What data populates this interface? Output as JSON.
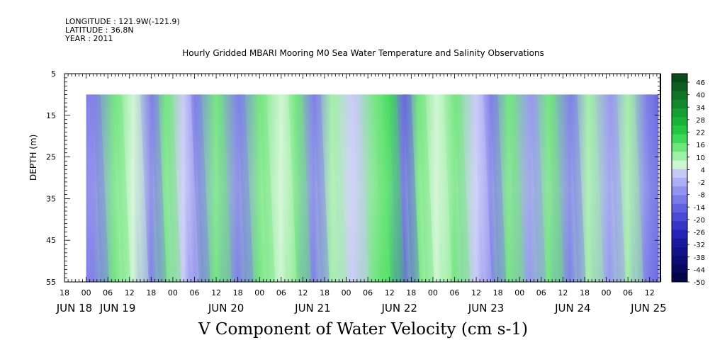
{
  "meta": {
    "longitude": "LONGITUDE : 121.9W(-121.9)",
    "latitude": "LATITUDE : 36.8N",
    "year": "YEAR : 2011"
  },
  "chart_data": {
    "type": "heatmap",
    "title": "Hourly Gridded MBARI Mooring M0 Sea Water Temperature and Salinity Observations",
    "xlabel": "V Component of Water Velocity (cm s-1)",
    "ylabel": "DEPTH (m)",
    "ylim": [
      5,
      55
    ],
    "y_inverted": true,
    "y_ticks": [
      5,
      15,
      25,
      35,
      45,
      55
    ],
    "data_depth_range": [
      10,
      55
    ],
    "x_hours_range": [
      -6,
      159
    ],
    "data_hour_start": 0,
    "x_hour_ticks": [
      {
        "h": -6,
        "label": "18"
      },
      {
        "h": 0,
        "label": "00"
      },
      {
        "h": 6,
        "label": "06"
      },
      {
        "h": 12,
        "label": "12"
      },
      {
        "h": 18,
        "label": "18"
      },
      {
        "h": 24,
        "label": "00"
      },
      {
        "h": 30,
        "label": "06"
      },
      {
        "h": 36,
        "label": "12"
      },
      {
        "h": 42,
        "label": "18"
      },
      {
        "h": 48,
        "label": "00"
      },
      {
        "h": 54,
        "label": "06"
      },
      {
        "h": 60,
        "label": "12"
      },
      {
        "h": 66,
        "label": "18"
      },
      {
        "h": 72,
        "label": "00"
      },
      {
        "h": 78,
        "label": "06"
      },
      {
        "h": 84,
        "label": "12"
      },
      {
        "h": 90,
        "label": "18"
      },
      {
        "h": 96,
        "label": "00"
      },
      {
        "h": 102,
        "label": "06"
      },
      {
        "h": 108,
        "label": "12"
      },
      {
        "h": 114,
        "label": "18"
      },
      {
        "h": 120,
        "label": "00"
      },
      {
        "h": 126,
        "label": "06"
      },
      {
        "h": 132,
        "label": "12"
      },
      {
        "h": 138,
        "label": "18"
      },
      {
        "h": 144,
        "label": "00"
      },
      {
        "h": 150,
        "label": "06"
      },
      {
        "h": 156,
        "label": "12"
      }
    ],
    "x_day_labels": [
      {
        "h": -6,
        "label": "JUN 18"
      },
      {
        "h": 6,
        "label": "JUN 19"
      },
      {
        "h": 36,
        "label": "JUN 20"
      },
      {
        "h": 60,
        "label": "JUN 21"
      },
      {
        "h": 84,
        "label": "JUN 22"
      },
      {
        "h": 108,
        "label": "JUN 23"
      },
      {
        "h": 132,
        "label": "JUN 24"
      },
      {
        "h": 153,
        "label": "JUN 25"
      }
    ],
    "colorbar": {
      "labels": [
        "46",
        "40",
        "34",
        "28",
        "22",
        "16",
        "10",
        "4",
        "-2",
        "-8",
        "-14",
        "-20",
        "-26",
        "-32",
        "-38",
        "-44",
        "-50"
      ],
      "colors": [
        "#0a4a1a",
        "#0d5e20",
        "#107326",
        "#13882d",
        "#169d33",
        "#1ab33a",
        "#22c842",
        "#3fd85a",
        "#6fe57c",
        "#a0efa6",
        "#cdf5d0",
        "#c8c8f8",
        "#aeaef5",
        "#9494f0",
        "#7b7be8",
        "#6262df",
        "#4a4ad6",
        "#3535c8",
        "#2424b5",
        "#1a1aa0",
        "#12128a",
        "#0c0c74",
        "#08085e",
        "#040448"
      ]
    },
    "field": [
      {
        "h": 2,
        "value": -9
      },
      {
        "h": 8,
        "value": 16
      },
      {
        "h": 13,
        "value": 6
      },
      {
        "h": 18,
        "value": -9
      },
      {
        "h": 22,
        "value": 14
      },
      {
        "h": 27,
        "value": 2
      },
      {
        "h": 30,
        "value": -10
      },
      {
        "h": 36,
        "value": 14
      },
      {
        "h": 42,
        "value": -11
      },
      {
        "h": 48,
        "value": 12
      },
      {
        "h": 54,
        "value": 4
      },
      {
        "h": 58,
        "value": 14
      },
      {
        "h": 63,
        "value": -12
      },
      {
        "h": 68,
        "value": 10
      },
      {
        "h": 74,
        "value": 2
      },
      {
        "h": 80,
        "value": 14
      },
      {
        "h": 84,
        "value": 20
      },
      {
        "h": 88,
        "value": -16
      },
      {
        "h": 92,
        "value": 12
      },
      {
        "h": 97,
        "value": 6
      },
      {
        "h": 102,
        "value": 16
      },
      {
        "h": 108,
        "value": 0
      },
      {
        "h": 112,
        "value": -12
      },
      {
        "h": 117,
        "value": 12
      },
      {
        "h": 123,
        "value": -8
      },
      {
        "h": 128,
        "value": 12
      },
      {
        "h": 134,
        "value": -10
      },
      {
        "h": 139,
        "value": 10
      },
      {
        "h": 145,
        "value": -6
      },
      {
        "h": 150,
        "value": 8
      },
      {
        "h": 155,
        "value": -10
      },
      {
        "h": 158,
        "value": -14
      }
    ]
  }
}
